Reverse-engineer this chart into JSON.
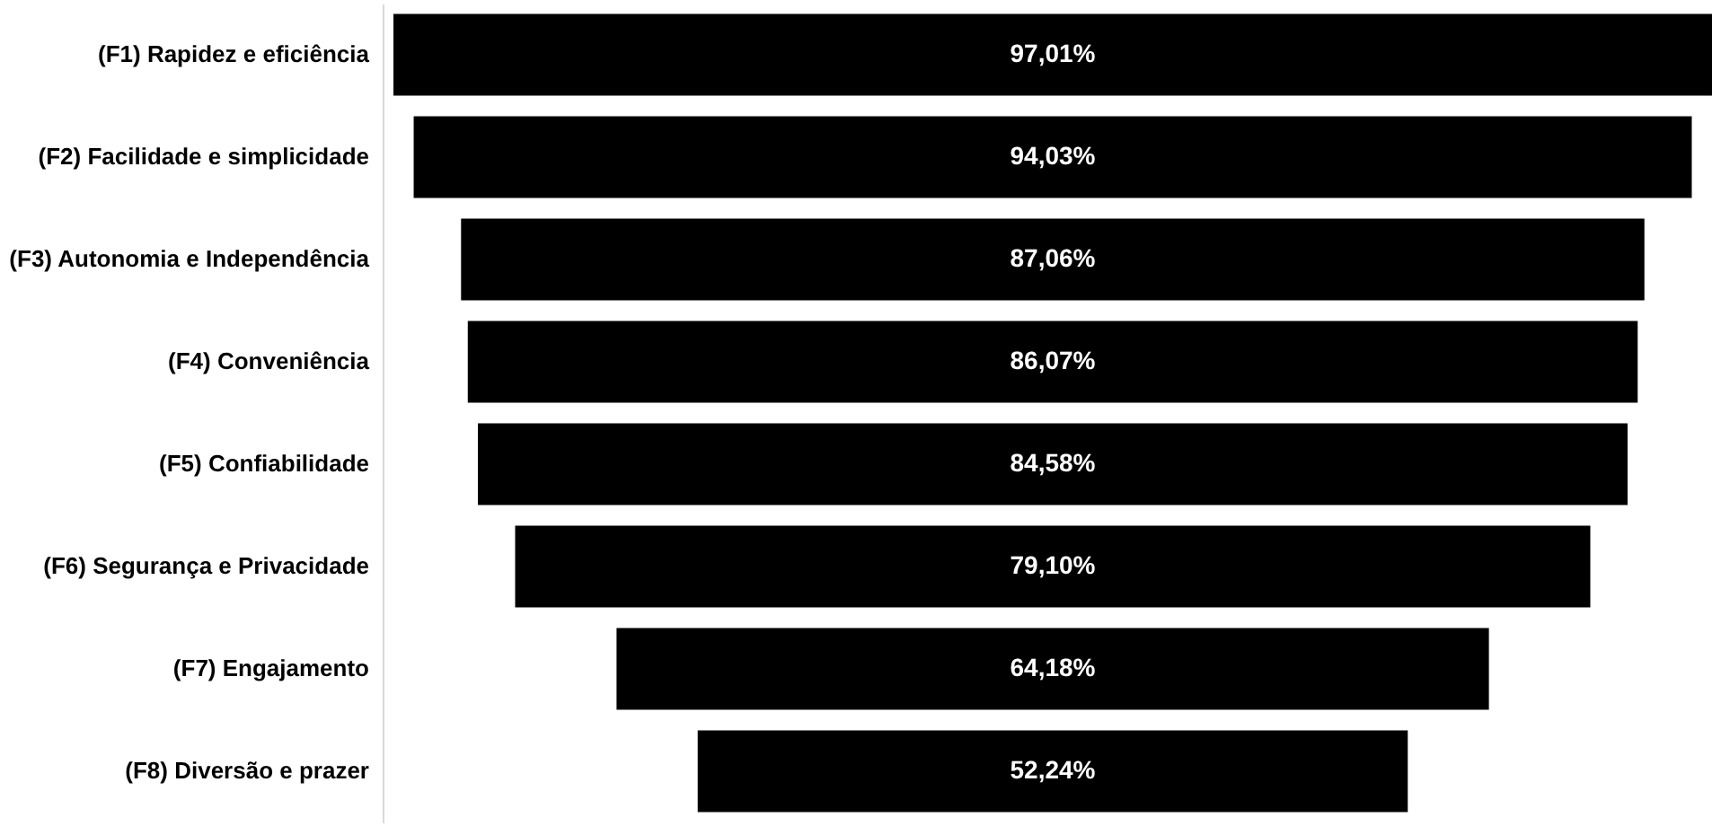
{
  "chart_data": {
    "type": "other",
    "categories": [
      "(F1) Rapidez e eficiência",
      "(F2) Facilidade e simplicidade",
      "(F3) Autonomia e Independência",
      "(F4) Conveniência",
      "(F5) Confiabilidade",
      "(F6) Segurança e Privacidade",
      "(F7) Engajamento",
      "(F8) Diversão e prazer"
    ],
    "values": [
      97.01,
      94.03,
      87.06,
      86.07,
      84.58,
      79.1,
      64.18,
      52.24
    ],
    "value_labels": [
      "97,01%",
      "94,03%",
      "87,06%",
      "86,07%",
      "84,58%",
      "79,10%",
      "64,18%",
      "52,24%"
    ],
    "color": "#000000"
  }
}
